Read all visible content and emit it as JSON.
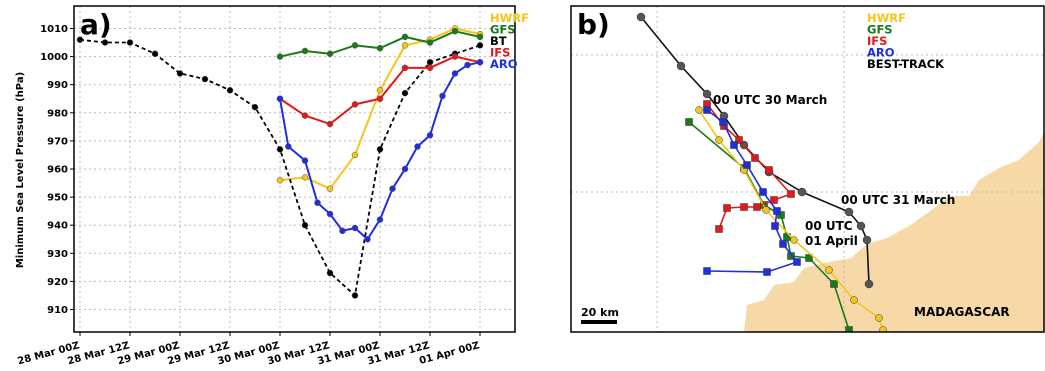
{
  "chart_data": [
    {
      "type": "line",
      "panel_label": "a)",
      "title": "",
      "xlabel": "",
      "ylabel": "Minimum Sea Level Pressure (hPa)",
      "ylim": [
        902,
        1018
      ],
      "xlim": [
        "28 Mar 00Z",
        "01 Apr 00Z"
      ],
      "x_unit_hours": true,
      "x_ticks": [
        {
          "hours": 0,
          "label": "28 Mar 00Z"
        },
        {
          "hours": 12,
          "label": "28 Mar 12Z"
        },
        {
          "hours": 24,
          "label": "29 Mar 00Z"
        },
        {
          "hours": 36,
          "label": "29 Mar 12Z"
        },
        {
          "hours": 48,
          "label": "30 Mar 00Z"
        },
        {
          "hours": 60,
          "label": "30 Mar 12Z"
        },
        {
          "hours": 72,
          "label": "31 Mar 00Z"
        },
        {
          "hours": 84,
          "label": "31 Mar 12Z"
        },
        {
          "hours": 96,
          "label": "01 Apr 00Z"
        }
      ],
      "y_ticks": [
        "910",
        "920",
        "930",
        "940",
        "950",
        "960",
        "970",
        "980",
        "990",
        "1000",
        "1010"
      ],
      "grid": true,
      "legend_placement": "top-right",
      "series": [
        {
          "name": "HWRF",
          "color": "#f5c518",
          "style": "solid",
          "marker": "circle",
          "x": [
            48,
            54,
            60,
            66,
            72,
            78,
            84,
            90,
            96
          ],
          "y": [
            956,
            957,
            953,
            965,
            988,
            1004,
            1006,
            1010,
            1008
          ]
        },
        {
          "name": "GFS",
          "color": "#1a7a1a",
          "style": "solid",
          "marker": "circle",
          "x": [
            48,
            54,
            60,
            66,
            72,
            78,
            84,
            90,
            96
          ],
          "y": [
            1000,
            1002,
            1001,
            1004,
            1003,
            1007,
            1005,
            1009,
            1007
          ]
        },
        {
          "name": "BT",
          "color": "#000000",
          "style": "dashed",
          "marker": "circle",
          "x": [
            0,
            6,
            12,
            18,
            24,
            30,
            36,
            42,
            48,
            54,
            60,
            66,
            72,
            78,
            84,
            90,
            96
          ],
          "y": [
            1006,
            1005,
            1005,
            1001,
            994,
            992,
            988,
            982,
            967,
            940,
            923,
            915,
            967,
            987,
            998,
            1001,
            1004
          ]
        },
        {
          "name": "IFS",
          "color": "#e31a1c",
          "style": "solid",
          "marker": "circle",
          "x": [
            48,
            54,
            60,
            66,
            72,
            78,
            84,
            90,
            96
          ],
          "y": [
            985,
            979,
            976,
            983,
            985,
            996,
            996,
            1000,
            998
          ]
        },
        {
          "name": "ARO",
          "color": "#1f2fe0",
          "style": "solid",
          "marker": "circle",
          "x": [
            48,
            50,
            54,
            57,
            60,
            63,
            66,
            69,
            72,
            75,
            78,
            81,
            84,
            87,
            90,
            93,
            96
          ],
          "y": [
            985,
            968,
            963,
            948,
            944,
            938,
            939,
            935,
            942,
            953,
            960,
            968,
            972,
            986,
            994,
            997,
            998
          ]
        }
      ]
    },
    {
      "type": "map",
      "panel_label": "b)",
      "land_label": "MADAGASCAR",
      "scale_label": "20 km",
      "annotations": [
        "00 UTC 30 March",
        "00 UTC 31 March",
        "00 UTC",
        "01 April"
      ],
      "legend_placement": "top-center",
      "legend": [
        {
          "name": "HWRF",
          "color": "#f5c518"
        },
        {
          "name": "GFS",
          "color": "#1a7a1a"
        },
        {
          "name": "IFS",
          "color": "#e31a1c"
        },
        {
          "name": "ARO",
          "color": "#1f2fe0"
        },
        {
          "name": "BEST-TRACK",
          "color": "#000000"
        }
      ],
      "land_color": "#f7d9a8"
    }
  ]
}
